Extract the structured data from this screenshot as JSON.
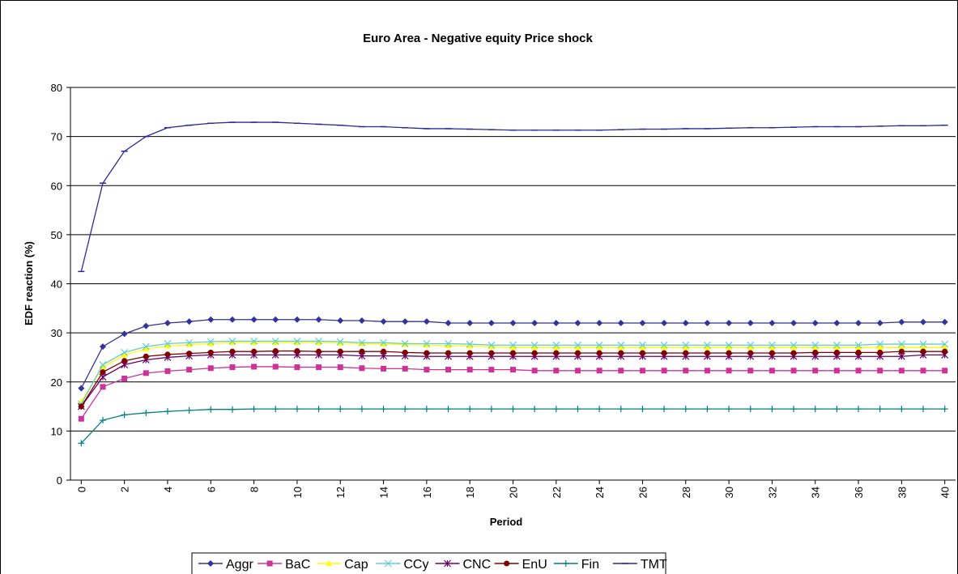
{
  "chart_data": {
    "type": "line",
    "title": "Euro Area - Negative equity Price shock",
    "x_label": "Period",
    "y_label": "EDF reaction (%)",
    "x": [
      0,
      1,
      2,
      3,
      4,
      5,
      6,
      7,
      8,
      9,
      10,
      11,
      12,
      13,
      14,
      15,
      16,
      17,
      18,
      19,
      20,
      21,
      22,
      23,
      24,
      25,
      26,
      27,
      28,
      29,
      30,
      31,
      32,
      33,
      34,
      35,
      36,
      37,
      38,
      39,
      40
    ],
    "xlim": [
      -0.5,
      40.5
    ],
    "xticks": [
      0,
      2,
      4,
      6,
      8,
      10,
      12,
      14,
      16,
      18,
      20,
      22,
      24,
      26,
      28,
      30,
      32,
      34,
      36,
      38,
      40
    ],
    "ylim": [
      0,
      80
    ],
    "yticks": [
      0,
      10,
      20,
      30,
      40,
      50,
      60,
      70,
      80
    ],
    "grid": true,
    "legend": "bottom",
    "series": [
      {
        "name": "Aggr",
        "color": "#333399",
        "marker": "diamond",
        "values": [
          18.7,
          27.2,
          29.8,
          31.4,
          32.0,
          32.3,
          32.7,
          32.7,
          32.7,
          32.7,
          32.7,
          32.7,
          32.5,
          32.5,
          32.3,
          32.3,
          32.3,
          32.0,
          32.0,
          32.0,
          32.0,
          32.0,
          32.0,
          32.0,
          32.0,
          32.0,
          32.0,
          32.0,
          32.0,
          32.0,
          32.0,
          32.0,
          32.0,
          32.0,
          32.0,
          32.0,
          32.0,
          32.0,
          32.2,
          32.2,
          32.2
        ]
      },
      {
        "name": "BaC",
        "color": "#cc3399",
        "marker": "square",
        "values": [
          12.5,
          19.0,
          20.7,
          21.8,
          22.2,
          22.5,
          22.8,
          23.0,
          23.1,
          23.1,
          23.0,
          23.0,
          23.0,
          22.8,
          22.7,
          22.7,
          22.5,
          22.5,
          22.5,
          22.5,
          22.5,
          22.3,
          22.3,
          22.3,
          22.3,
          22.3,
          22.3,
          22.3,
          22.3,
          22.3,
          22.3,
          22.3,
          22.3,
          22.3,
          22.3,
          22.3,
          22.3,
          22.3,
          22.3,
          22.3,
          22.3
        ]
      },
      {
        "name": "Cap",
        "color": "#ffff00",
        "marker": "triangle",
        "values": [
          16.0,
          23.0,
          25.5,
          26.7,
          27.3,
          27.6,
          27.8,
          28.0,
          28.0,
          28.0,
          28.0,
          28.0,
          27.9,
          27.8,
          27.7,
          27.6,
          27.5,
          27.4,
          27.3,
          27.2,
          27.0,
          27.0,
          27.0,
          27.0,
          27.0,
          27.0,
          27.0,
          27.0,
          27.0,
          27.0,
          27.0,
          27.0,
          27.0,
          27.0,
          27.0,
          27.0,
          27.0,
          27.0,
          27.0,
          27.0,
          27.0
        ]
      },
      {
        "name": "CCy",
        "color": "#66cccc",
        "marker": "x",
        "values": [
          15.5,
          23.5,
          26.0,
          27.2,
          27.8,
          28.0,
          28.2,
          28.3,
          28.3,
          28.3,
          28.3,
          28.3,
          28.2,
          28.0,
          28.0,
          27.8,
          27.8,
          27.8,
          27.7,
          27.5,
          27.5,
          27.5,
          27.5,
          27.5,
          27.5,
          27.5,
          27.5,
          27.5,
          27.5,
          27.5,
          27.5,
          27.5,
          27.5,
          27.5,
          27.5,
          27.5,
          27.5,
          27.7,
          27.7,
          27.7,
          27.7
        ]
      },
      {
        "name": "CNC",
        "color": "#660066",
        "marker": "star",
        "values": [
          15.0,
          21.0,
          23.5,
          24.5,
          25.0,
          25.3,
          25.5,
          25.5,
          25.5,
          25.5,
          25.5,
          25.5,
          25.5,
          25.3,
          25.3,
          25.3,
          25.2,
          25.2,
          25.2,
          25.2,
          25.2,
          25.2,
          25.2,
          25.2,
          25.2,
          25.2,
          25.2,
          25.2,
          25.2,
          25.2,
          25.2,
          25.2,
          25.2,
          25.2,
          25.2,
          25.2,
          25.2,
          25.2,
          25.2,
          25.5,
          25.5
        ]
      },
      {
        "name": "EnU",
        "color": "#800000",
        "marker": "circle",
        "values": [
          15.0,
          22.0,
          24.3,
          25.2,
          25.6,
          25.8,
          26.0,
          26.2,
          26.2,
          26.3,
          26.3,
          26.2,
          26.2,
          26.2,
          26.2,
          26.0,
          25.9,
          25.9,
          25.9,
          25.9,
          25.9,
          25.9,
          25.9,
          25.9,
          25.9,
          25.9,
          25.9,
          25.9,
          25.9,
          25.9,
          25.9,
          25.9,
          25.9,
          25.9,
          26.0,
          26.0,
          26.0,
          26.0,
          26.2,
          26.2,
          26.2
        ]
      },
      {
        "name": "Fin",
        "color": "#008080",
        "marker": "plus",
        "values": [
          7.5,
          12.2,
          13.3,
          13.7,
          14.0,
          14.2,
          14.4,
          14.4,
          14.5,
          14.5,
          14.5,
          14.5,
          14.5,
          14.5,
          14.5,
          14.5,
          14.5,
          14.5,
          14.5,
          14.5,
          14.5,
          14.5,
          14.5,
          14.5,
          14.5,
          14.5,
          14.5,
          14.5,
          14.5,
          14.5,
          14.5,
          14.5,
          14.5,
          14.5,
          14.5,
          14.5,
          14.5,
          14.5,
          14.5,
          14.5,
          14.5
        ]
      },
      {
        "name": "TMT",
        "color": "#2a2a99",
        "marker": "dash",
        "values": [
          42.5,
          60.5,
          67.0,
          70.0,
          71.8,
          72.3,
          72.7,
          72.9,
          72.9,
          72.9,
          72.7,
          72.5,
          72.3,
          72.0,
          72.0,
          71.8,
          71.6,
          71.6,
          71.5,
          71.4,
          71.3,
          71.3,
          71.3,
          71.3,
          71.3,
          71.4,
          71.5,
          71.5,
          71.6,
          71.6,
          71.7,
          71.8,
          71.8,
          71.9,
          72.0,
          72.0,
          72.0,
          72.1,
          72.2,
          72.2,
          72.3
        ]
      }
    ]
  }
}
